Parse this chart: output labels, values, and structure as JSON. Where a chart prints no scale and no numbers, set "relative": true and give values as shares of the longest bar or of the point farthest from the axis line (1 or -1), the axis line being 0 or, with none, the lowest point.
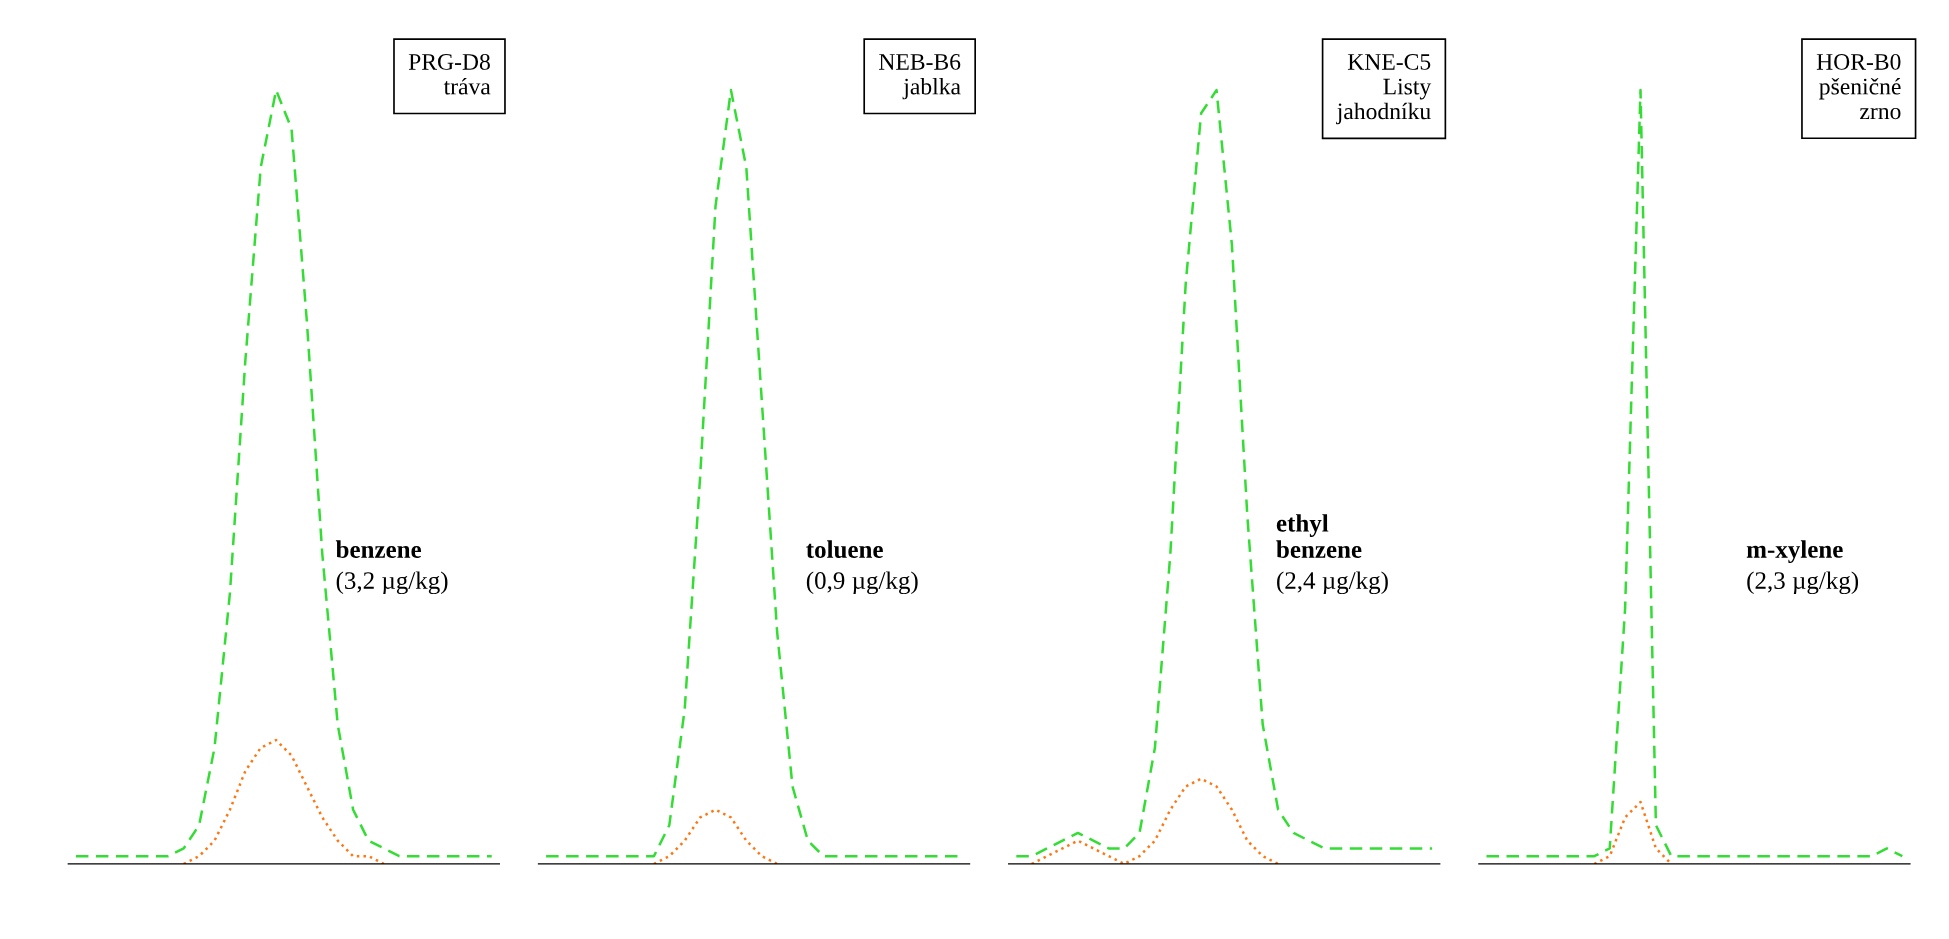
{
  "chart_data": [
    {
      "type": "line",
      "relative": true,
      "categories": [
        null,
        null,
        null,
        null,
        null,
        null,
        null,
        null,
        null,
        null,
        null,
        null,
        null,
        null,
        null,
        null,
        null,
        null,
        null,
        null,
        null,
        null,
        null,
        null,
        null,
        null,
        null,
        null
      ],
      "grid": false,
      "annotations": [
        "PRG-D8\ntráva",
        "benzene",
        "(3,2 µg/kg)"
      ],
      "series": [
        {
          "color": "#33dd33",
          "line_style": "dashed",
          "values": [
            0.01,
            0.01,
            0.01,
            0.01,
            0.01,
            0.01,
            0.01,
            0.02,
            0.05,
            0.15,
            0.35,
            0.65,
            0.9,
            1.0,
            0.95,
            0.7,
            0.4,
            0.18,
            0.07,
            0.03,
            0.02,
            0.01,
            0.01,
            0.01,
            0.01,
            0.01,
            0.01,
            0.01
          ]
        },
        {
          "color": "#ff7711",
          "line_style": "dotted",
          "values": [
            null,
            null,
            null,
            null,
            null,
            null,
            null,
            0,
            0.01,
            0.03,
            0.07,
            0.12,
            0.15,
            0.16,
            0.14,
            0.1,
            0.06,
            0.03,
            0.01,
            0.01,
            0,
            null,
            null,
            null,
            null,
            null,
            null,
            null
          ]
        }
      ]
    },
    {
      "type": "line",
      "relative": true,
      "categories": [
        null,
        null,
        null,
        null,
        null,
        null,
        null,
        null,
        null,
        null,
        null,
        null,
        null,
        null,
        null,
        null,
        null,
        null,
        null,
        null,
        null,
        null,
        null,
        null,
        null,
        null,
        null,
        null
      ],
      "grid": false,
      "annotations": [
        "NEB-B6\njablka",
        "toluene",
        "(0,9 µg/kg)"
      ],
      "series": [
        {
          "color": "#33dd33",
          "line_style": "dashed",
          "values": [
            0.01,
            0.01,
            0.01,
            0.01,
            0.01,
            0.01,
            0.01,
            0.01,
            0.05,
            0.2,
            0.5,
            0.85,
            1.0,
            0.9,
            0.6,
            0.3,
            0.1,
            0.03,
            0.01,
            0.01,
            0.01,
            0.01,
            0.01,
            0.01,
            0.01,
            0.01,
            0.01,
            0.01
          ]
        },
        {
          "color": "#ff7711",
          "line_style": "dotted",
          "values": [
            null,
            null,
            null,
            null,
            null,
            null,
            null,
            0,
            0.01,
            0.03,
            0.06,
            0.07,
            0.06,
            0.03,
            0.01,
            0,
            null,
            null,
            null,
            null,
            null,
            null,
            null,
            null,
            null,
            null,
            null,
            null
          ]
        }
      ]
    },
    {
      "type": "line",
      "relative": true,
      "categories": [
        null,
        null,
        null,
        null,
        null,
        null,
        null,
        null,
        null,
        null,
        null,
        null,
        null,
        null,
        null,
        null,
        null,
        null,
        null,
        null,
        null,
        null,
        null,
        null,
        null,
        null,
        null,
        null
      ],
      "grid": false,
      "annotations": [
        "KNE-C5\nListy\njahodníku",
        "ethyl\nbenzene",
        "(2,4 µg/kg)"
      ],
      "series": [
        {
          "color": "#33dd33",
          "line_style": "dashed",
          "values": [
            0.01,
            0.01,
            0.02,
            0.03,
            0.04,
            0.03,
            0.02,
            0.02,
            0.04,
            0.15,
            0.4,
            0.75,
            0.97,
            1.0,
            0.8,
            0.45,
            0.18,
            0.07,
            0.04,
            0.03,
            0.02,
            0.02,
            0.02,
            0.02,
            0.02,
            0.02,
            0.02,
            0.02
          ]
        },
        {
          "color": "#ff7711",
          "line_style": "dotted",
          "values": [
            null,
            0,
            0.01,
            0.02,
            0.03,
            0.02,
            0.01,
            0,
            0.01,
            0.03,
            0.07,
            0.1,
            0.11,
            0.1,
            0.07,
            0.03,
            0.01,
            0,
            null,
            null,
            null,
            null,
            null,
            null,
            null,
            null,
            null,
            null
          ]
        }
      ]
    },
    {
      "type": "line",
      "relative": true,
      "categories": [
        null,
        null,
        null,
        null,
        null,
        null,
        null,
        null,
        null,
        null,
        null,
        null,
        null,
        null,
        null,
        null,
        null,
        null,
        null,
        null,
        null,
        null,
        null,
        null,
        null,
        null,
        null,
        null
      ],
      "grid": false,
      "annotations": [
        "HOR-B0\npšeničné\nzrno",
        "m-xylene",
        "(2,3 µg/kg)"
      ],
      "series": [
        {
          "color": "#33dd33",
          "line_style": "dashed",
          "values": [
            0.01,
            0.01,
            0.01,
            0.01,
            0.01,
            0.01,
            0.01,
            0.01,
            0.02,
            0.33,
            1.0,
            0.05,
            0.01,
            0.01,
            0.01,
            0.01,
            0.01,
            0.01,
            0.01,
            0.01,
            0.01,
            0.01,
            0.01,
            0.01,
            0.01,
            0.01,
            0.02,
            0.01
          ]
        },
        {
          "color": "#ff7711",
          "line_style": "dotted",
          "values": [
            null,
            null,
            null,
            null,
            null,
            null,
            null,
            0,
            0.01,
            0.06,
            0.08,
            0.02,
            0,
            null,
            null,
            null,
            null,
            null,
            null,
            null,
            null,
            null,
            null,
            null,
            null,
            null,
            null,
            null
          ]
        }
      ]
    }
  ]
}
